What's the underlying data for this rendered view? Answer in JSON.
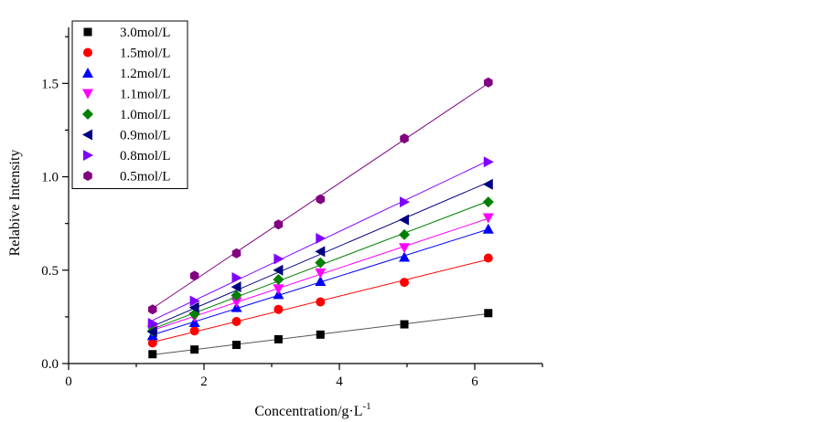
{
  "chart_data": {
    "type": "scatter",
    "title": "",
    "xlabel": "Concentration/g·L",
    "xlabel_superscript": "-1",
    "ylabel": "Relabive Intensity",
    "xlim": [
      0,
      7
    ],
    "ylim": [
      0,
      1.8
    ],
    "xticks": [
      0,
      2,
      4,
      6
    ],
    "yticks": [
      0.0,
      0.5,
      1.0,
      1.5
    ],
    "xtick_labels": [
      "0",
      "2",
      "4",
      "6"
    ],
    "ytick_labels": [
      "0.0",
      "0.5",
      "1.0",
      "1.5"
    ],
    "grid": false,
    "legend_position": "top-left",
    "fit_lines": true,
    "x": [
      1.24,
      1.86,
      2.48,
      3.1,
      3.72,
      4.96,
      6.2
    ],
    "series": [
      {
        "name": "3.0mol/L",
        "marker": "square",
        "color": "#000000",
        "line_color": "#555555",
        "values": [
          0.05,
          0.075,
          0.1,
          0.13,
          0.155,
          0.21,
          0.27
        ]
      },
      {
        "name": "1.5mol/L",
        "marker": "circle",
        "color": "#ff0000",
        "line_color": "#ff0000",
        "values": [
          0.11,
          0.175,
          0.225,
          0.29,
          0.33,
          0.435,
          0.565
        ]
      },
      {
        "name": "1.2mol/L",
        "marker": "triangle-up",
        "color": "#0000ff",
        "line_color": "#0000ff",
        "values": [
          0.15,
          0.22,
          0.3,
          0.37,
          0.44,
          0.57,
          0.72
        ]
      },
      {
        "name": "1.1mol/L",
        "marker": "triangle-down",
        "color": "#ff00ff",
        "line_color": "#ff00ff",
        "values": [
          0.18,
          0.25,
          0.33,
          0.4,
          0.485,
          0.62,
          0.78
        ]
      },
      {
        "name": "1.0mol/L",
        "marker": "diamond",
        "color": "#008000",
        "line_color": "#008000",
        "values": [
          0.175,
          0.265,
          0.365,
          0.45,
          0.54,
          0.69,
          0.865
        ]
      },
      {
        "name": "0.9mol/L",
        "marker": "triangle-left",
        "color": "#000080",
        "line_color": "#000080",
        "values": [
          0.17,
          0.3,
          0.41,
          0.5,
          0.6,
          0.77,
          0.96
        ]
      },
      {
        "name": "0.8mol/L",
        "marker": "triangle-right",
        "color": "#8000ff",
        "line_color": "#8000ff",
        "values": [
          0.215,
          0.335,
          0.46,
          0.56,
          0.67,
          0.865,
          1.08
        ]
      },
      {
        "name": "0.5mol/L",
        "marker": "hexagon",
        "color": "#800080",
        "line_color": "#800080",
        "values": [
          0.29,
          0.47,
          0.59,
          0.745,
          0.88,
          1.205,
          1.505
        ]
      }
    ]
  }
}
